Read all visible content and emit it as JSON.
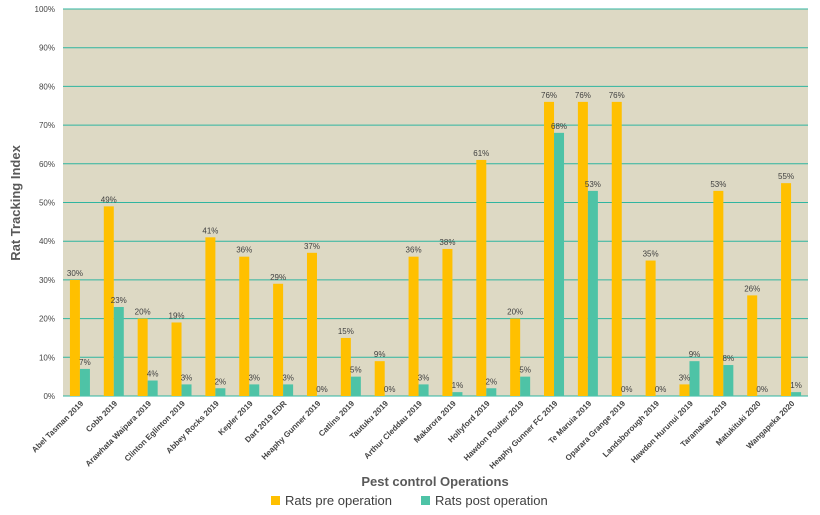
{
  "chart_data": {
    "type": "bar",
    "title": "",
    "xlabel": "Pest control Operations",
    "ylabel": "Rat Tracking  Index",
    "ylim": [
      0,
      100
    ],
    "ytick_labels": [
      "0%",
      "10%",
      "20%",
      "30%",
      "40%",
      "50%",
      "60%",
      "70%",
      "80%",
      "90%",
      "100%"
    ],
    "grid": true,
    "legend_position": "bottom",
    "categories": [
      "Abel Tasman 2019",
      "Cobb 2019",
      "Arawhata Waipara 2019",
      "Clinton Eglinton 2019",
      "Abbey Rocks 2019",
      "Kepler 2019",
      "Dart 2019 EDR",
      "Heaphy Gunner 2019",
      "Catlins 2019",
      "Tautuku 2019",
      "Arthur Cleddau 2019",
      "Makarora 2019",
      "Hollyford 2019",
      "Hawdon Poulter 2019",
      "Heaphy Gunner FC 2019",
      "Te Maruia 2019",
      "Oparara Grange 2019",
      "Landsborough 2019",
      "Hawdon Hurunui 2019",
      "Taramakau 2019",
      "Matukituki 2020",
      "Wangapeka 2020"
    ],
    "series": [
      {
        "name": "Rats pre operation",
        "color": "#FFC000",
        "values": [
          30,
          49,
          20,
          19,
          41,
          36,
          29,
          37,
          15,
          9,
          36,
          38,
          61,
          20,
          76,
          76,
          76,
          35,
          3,
          53,
          26,
          55
        ],
        "labels": [
          "30%",
          "49%",
          "20%",
          "19%",
          "41%",
          "36%",
          "29%",
          "37%",
          "15%",
          "9%",
          "36%",
          "38%",
          "61%",
          "20%",
          "76%",
          "76%",
          "76%",
          "35%",
          "3%",
          "53%",
          "26%",
          "55%"
        ]
      },
      {
        "name": "Rats post operation",
        "color": "#4EC3A6",
        "values": [
          7,
          23,
          4,
          3,
          2,
          3,
          3,
          0,
          5,
          0,
          3,
          1,
          2,
          5,
          68,
          53,
          0,
          0,
          9,
          8,
          0,
          1
        ],
        "labels": [
          "7%",
          "23%",
          "4%",
          "3%",
          "2%",
          "3%",
          "3%",
          "0%",
          "5%",
          "0%",
          "3%",
          "1%",
          "2%",
          "5%",
          "68%",
          "53%",
          "0%",
          "0%",
          "9%",
          "8%",
          "0%",
          "1%"
        ]
      }
    ],
    "plot_background": "#DDD9C4",
    "grid_color": "#2FB5A0"
  }
}
